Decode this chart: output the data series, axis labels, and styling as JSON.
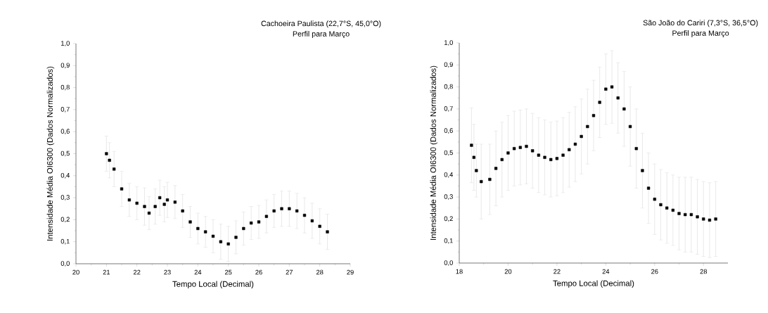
{
  "chart_data": [
    {
      "type": "scatter",
      "title": "Cachoeira Paulista (22,7°S, 45,0°O)",
      "subtitle": "Perfil para Março",
      "xlabel": "Tempo Local (Decimal)",
      "ylabel": "Intensidade Média OI6300 (Dados Normalizados)",
      "marker": "square",
      "color": "#000000",
      "x": [
        21.0,
        21.1,
        21.25,
        21.5,
        21.75,
        22.0,
        22.25,
        22.4,
        22.6,
        22.75,
        22.9,
        23.0,
        23.25,
        23.5,
        23.75,
        24.0,
        24.25,
        24.5,
        24.75,
        25.0,
        25.25,
        25.5,
        25.75,
        26.0,
        26.25,
        26.5,
        26.75,
        27.0,
        27.25,
        27.5,
        27.75,
        28.0,
        28.25
      ],
      "values": [
        0.5,
        0.47,
        0.43,
        0.34,
        0.29,
        0.275,
        0.26,
        0.23,
        0.26,
        0.3,
        0.27,
        0.29,
        0.28,
        0.24,
        0.19,
        0.16,
        0.145,
        0.125,
        0.1,
        0.09,
        0.12,
        0.16,
        0.185,
        0.19,
        0.215,
        0.24,
        0.25,
        0.25,
        0.24,
        0.22,
        0.195,
        0.17,
        0.145
      ],
      "errors": [
        0.08,
        0.08,
        0.08,
        0.08,
        0.075,
        0.075,
        0.085,
        0.075,
        0.08,
        0.08,
        0.08,
        0.08,
        0.075,
        0.075,
        0.07,
        0.07,
        0.07,
        0.075,
        0.08,
        0.08,
        0.075,
        0.075,
        0.075,
        0.075,
        0.075,
        0.075,
        0.08,
        0.08,
        0.08,
        0.08,
        0.08,
        0.08,
        0.08
      ],
      "xlim": [
        20,
        29
      ],
      "ylim": [
        0,
        1
      ],
      "xticks": [
        20,
        21,
        22,
        23,
        24,
        25,
        26,
        27,
        28,
        29
      ],
      "yticks": [
        {
          "value": 0,
          "label": "0,0"
        },
        {
          "value": 0.1,
          "label": "0,1"
        },
        {
          "value": 0.2,
          "label": "0,2"
        },
        {
          "value": 0.3,
          "label": "0,3"
        },
        {
          "value": 0.4,
          "label": "0,4"
        },
        {
          "value": 0.5,
          "label": "0,5"
        },
        {
          "value": 0.6,
          "label": "0,6"
        },
        {
          "value": 0.7,
          "label": "0,7"
        },
        {
          "value": 0.8,
          "label": "0,8"
        },
        {
          "value": 0.9,
          "label": "0,9"
        },
        {
          "value": 1,
          "label": "1,0"
        }
      ]
    },
    {
      "type": "scatter",
      "title": "São João do Cariri (7,3°S, 36,5°O)",
      "subtitle": "Perfil para Março",
      "xlabel": "Tempo Local (Decimal)",
      "ylabel": "Intensidade Média OI6300 (Dados Normalizados)",
      "marker": "square",
      "color": "#000000",
      "x": [
        18.5,
        18.6,
        18.7,
        18.9,
        19.25,
        19.5,
        19.75,
        20.0,
        20.25,
        20.5,
        20.75,
        21.0,
        21.25,
        21.5,
        21.75,
        22.0,
        22.25,
        22.5,
        22.75,
        23.0,
        23.25,
        23.5,
        23.75,
        24.0,
        24.25,
        24.5,
        24.75,
        25.0,
        25.25,
        25.5,
        25.75,
        26.0,
        26.25,
        26.5,
        26.75,
        27.0,
        27.25,
        27.5,
        27.75,
        28.0,
        28.25,
        28.5
      ],
      "values": [
        0.535,
        0.48,
        0.42,
        0.37,
        0.38,
        0.43,
        0.47,
        0.5,
        0.52,
        0.525,
        0.53,
        0.51,
        0.49,
        0.48,
        0.47,
        0.475,
        0.49,
        0.515,
        0.54,
        0.575,
        0.62,
        0.67,
        0.73,
        0.79,
        0.8,
        0.75,
        0.7,
        0.62,
        0.52,
        0.42,
        0.34,
        0.29,
        0.265,
        0.25,
        0.24,
        0.225,
        0.22,
        0.22,
        0.21,
        0.2,
        0.195,
        0.2
      ],
      "errors": [
        0.17,
        0.15,
        0.12,
        0.17,
        0.16,
        0.17,
        0.17,
        0.17,
        0.17,
        0.17,
        0.17,
        0.17,
        0.17,
        0.17,
        0.17,
        0.17,
        0.17,
        0.17,
        0.17,
        0.17,
        0.17,
        0.16,
        0.16,
        0.16,
        0.165,
        0.16,
        0.17,
        0.18,
        0.18,
        0.17,
        0.16,
        0.16,
        0.16,
        0.16,
        0.16,
        0.165,
        0.17,
        0.17,
        0.17,
        0.17,
        0.17,
        0.17
      ],
      "xlim": [
        18,
        29
      ],
      "ylim": [
        0,
        1
      ],
      "xticks": [
        18,
        20,
        22,
        24,
        26,
        28
      ],
      "yticks": [
        {
          "value": 0,
          "label": "0,0"
        },
        {
          "value": 0.1,
          "label": "0,1"
        },
        {
          "value": 0.2,
          "label": "0,2"
        },
        {
          "value": 0.3,
          "label": "0,3"
        },
        {
          "value": 0.4,
          "label": "0,4"
        },
        {
          "value": 0.5,
          "label": "0,5"
        },
        {
          "value": 0.6,
          "label": "0,6"
        },
        {
          "value": 0.7,
          "label": "0,7"
        },
        {
          "value": 0.8,
          "label": "0,8"
        },
        {
          "value": 0.9,
          "label": "0,9"
        },
        {
          "value": 1,
          "label": "1,0"
        }
      ]
    }
  ]
}
